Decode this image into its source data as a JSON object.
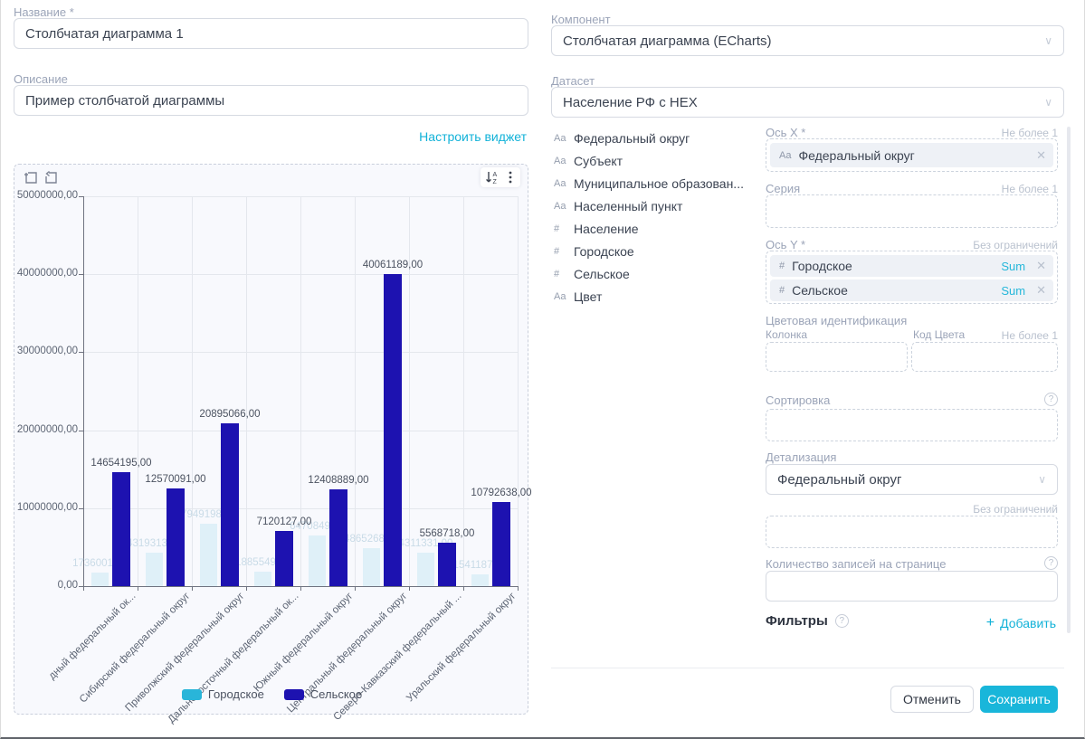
{
  "form_left": {
    "name_label": "Название *",
    "name_value": "Столбчатая диаграмма 1",
    "description_label": "Описание",
    "description_value": "Пример столбчатой диаграммы",
    "configure_link": "Настроить виджет"
  },
  "form_right": {
    "component_label": "Компонент",
    "component_value": "Столбчатая диаграмма (ECharts)",
    "dataset_label": "Датасет",
    "dataset_value": "Население РФ с HEX"
  },
  "fields": [
    {
      "type_icon": "Aa",
      "label": "Федеральный округ"
    },
    {
      "type_icon": "Aa",
      "label": "Субъект"
    },
    {
      "type_icon": "Aa",
      "label": "Муниципальное образован..."
    },
    {
      "type_icon": "Aa",
      "label": "Населенный пункт"
    },
    {
      "type_icon": "#",
      "label": "Население"
    },
    {
      "type_icon": "#",
      "label": "Городское"
    },
    {
      "type_icon": "#",
      "label": "Сельское"
    },
    {
      "type_icon": "Aa",
      "label": "Цвет"
    }
  ],
  "config": {
    "x_axis_label": "Ось X *",
    "x_axis_limit": "Не более 1",
    "x_axis_chip": {
      "type_icon": "Aa",
      "label": "Федеральный округ"
    },
    "series_label": "Серия",
    "series_limit": "Не более 1",
    "y_axis_label": "Ось Y *",
    "y_axis_limit": "Без ограничений",
    "y_axis_chips": [
      {
        "type_icon": "#",
        "label": "Городское",
        "agg": "Sum"
      },
      {
        "type_icon": "#",
        "label": "Сельское",
        "agg": "Sum"
      }
    ],
    "color_section_label": "Цветовая идентификация",
    "color_column_label": "Колонка",
    "color_code_label": "Код Цвета",
    "color_limit": "Не более 1",
    "sort_label": "Сортировка",
    "drilldown_label": "Детализация",
    "drilldown_value": "Федеральный округ",
    "drilldown_limit": "Без ограничений",
    "page_size_label": "Количество записей на странице",
    "filters_label": "Фильтры",
    "add_filter_label": "Добавить",
    "help_glyph": "?"
  },
  "buttons": {
    "cancel": "Отменить",
    "save": "Сохранить"
  },
  "colors": {
    "accent": "#12b2d8",
    "save_button": "#19b6da",
    "urban_legend": "#29b5d9",
    "urban_bar": "#dff0f8",
    "rural_bar": "#1d12b0",
    "label_gray": "#9ba4b8"
  },
  "chart_data": {
    "type": "bar",
    "title": "",
    "xlabel": "",
    "ylabel": "",
    "categories": [
      "дный федеральный ок...",
      "Сибирский федеральный округ",
      "Приволжский федеральный округ",
      "Дальневосточный федеральный ок...",
      "Южный федеральный округ",
      "Центральный федеральный округ",
      "Северо-Кавказский федеральный ...",
      "Уральский федеральный округ"
    ],
    "series": [
      {
        "name": "Городское",
        "legend_color": "#29b5d9",
        "bar_color": "#dff0f8",
        "label_color": "#c9dbe7",
        "values": [
          1736001,
          4319313,
          7949198,
          1885549,
          6470849,
          4865268,
          4311331,
          1541187
        ]
      },
      {
        "name": "Сельское",
        "legend_color": "#1d12b0",
        "bar_color": "#1d12b0",
        "label_color": "#4b5260",
        "values": [
          14654195,
          12570091,
          20895066,
          7120127,
          12408889,
          40061189,
          5568718,
          10792638
        ]
      }
    ],
    "ylim": [
      0,
      50000000
    ],
    "y_ticks": [
      "0,00",
      "10000000,00",
      "20000000,00",
      "30000000,00",
      "40000000,00",
      "50000000,00"
    ],
    "value_suffix": ",00",
    "grid": true,
    "legend_position": "bottom"
  }
}
